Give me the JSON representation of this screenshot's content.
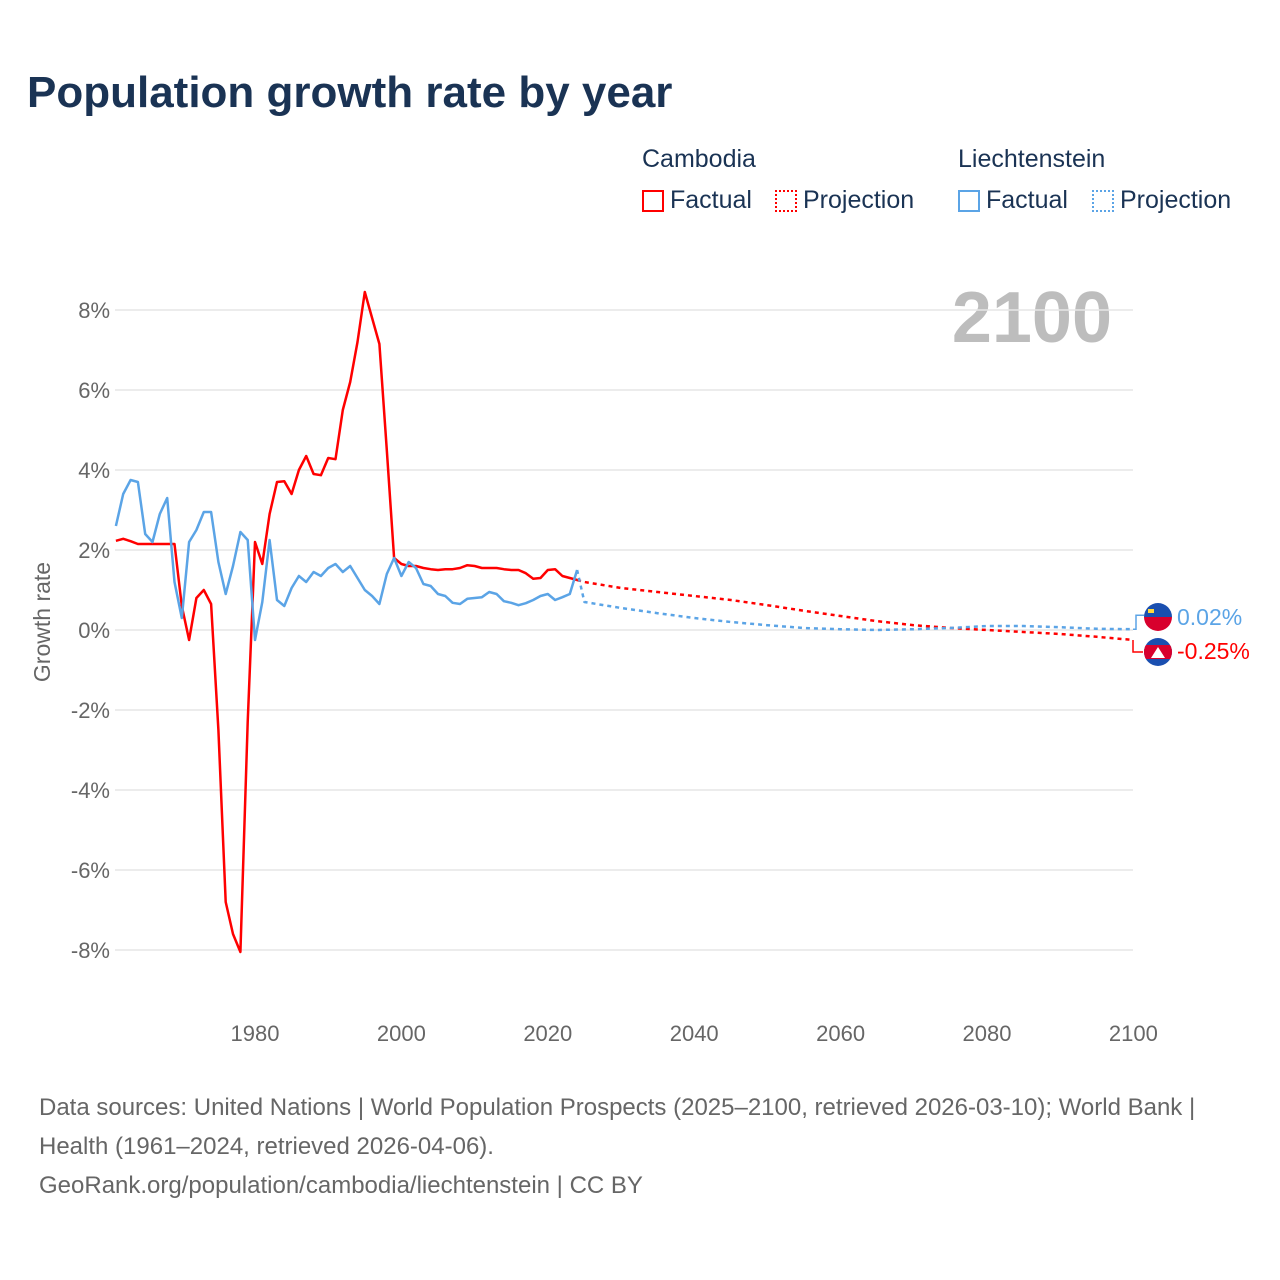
{
  "title": "Population growth rate by year",
  "legend": {
    "groups": [
      {
        "name": "Cambodia",
        "factual": "Factual",
        "projection": "Projection",
        "color": "#ff0000"
      },
      {
        "name": "Liechtenstein",
        "factual": "Factual",
        "projection": "Projection",
        "color": "#5ba4e6"
      }
    ]
  },
  "sources": {
    "line1": "Data sources: United Nations | World Population Prospects (2025–2100, retrieved 2026-03-10); World Bank | Health (1961–2024, retrieved 2026-04-06).",
    "line2": "GeoRank.org/population/cambodia/liechtenstein | CC BY"
  },
  "chart_data": {
    "type": "line",
    "title": "Population growth rate by year",
    "xlabel": "",
    "ylabel": "Growth rate",
    "year_label": "2100",
    "xlim": [
      1961,
      2100
    ],
    "ylim": [
      -9,
      9
    ],
    "xticks": [
      1980,
      2000,
      2020,
      2040,
      2060,
      2080,
      2100
    ],
    "yticks": [
      -8,
      -6,
      -4,
      -2,
      0,
      2,
      4,
      6,
      8
    ],
    "ytick_labels": [
      "-8%",
      "-6%",
      "-4%",
      "-2%",
      "0%",
      "2%",
      "4%",
      "6%",
      "8%"
    ],
    "end_labels": {
      "Cambodia": "-0.25%",
      "Liechtenstein": "0.02%"
    },
    "series": [
      {
        "name": "Cambodia",
        "kind": "factual",
        "color": "#ff0000",
        "x_start": 1961,
        "values": [
          2.23,
          2.28,
          2.22,
          2.15,
          2.15,
          2.15,
          2.15,
          2.15,
          2.15,
          0.6,
          -0.25,
          0.8,
          1.0,
          0.65,
          -2.5,
          -6.8,
          -7.6,
          -8.05,
          -2.3,
          2.2,
          1.65,
          2.9,
          3.7,
          3.72,
          3.4,
          4.0,
          4.35,
          3.9,
          3.87,
          4.3,
          4.27,
          5.5,
          6.2,
          7.2,
          8.45,
          7.8,
          7.15,
          4.5,
          1.8,
          1.65,
          1.6,
          1.6,
          1.55,
          1.52,
          1.5,
          1.52,
          1.52,
          1.55,
          1.62,
          1.6,
          1.55,
          1.55,
          1.55,
          1.52,
          1.5,
          1.5,
          1.42,
          1.28,
          1.3,
          1.5,
          1.52,
          1.35,
          1.3,
          1.25
        ]
      },
      {
        "name": "Cambodia",
        "kind": "projection",
        "color": "#ff0000",
        "x": [
          2024,
          2025,
          2030,
          2035,
          2040,
          2045,
          2050,
          2055,
          2060,
          2065,
          2070,
          2075,
          2080,
          2085,
          2090,
          2095,
          2100
        ],
        "values": [
          1.25,
          1.2,
          1.05,
          0.95,
          0.85,
          0.75,
          0.62,
          0.48,
          0.35,
          0.22,
          0.12,
          0.05,
          0.0,
          -0.05,
          -0.1,
          -0.17,
          -0.25
        ]
      },
      {
        "name": "Liechtenstein",
        "kind": "factual",
        "color": "#5ba4e6",
        "x_start": 1961,
        "values": [
          2.6,
          3.4,
          3.75,
          3.7,
          2.4,
          2.2,
          2.9,
          3.3,
          1.2,
          0.3,
          2.2,
          2.5,
          2.95,
          2.95,
          1.7,
          0.9,
          1.6,
          2.45,
          2.25,
          -0.25,
          0.7,
          2.25,
          0.75,
          0.6,
          1.05,
          1.35,
          1.2,
          1.45,
          1.35,
          1.55,
          1.65,
          1.45,
          1.6,
          1.3,
          1.0,
          0.85,
          0.65,
          1.4,
          1.8,
          1.35,
          1.7,
          1.55,
          1.15,
          1.1,
          0.9,
          0.85,
          0.68,
          0.65,
          0.78,
          0.8,
          0.82,
          0.95,
          0.9,
          0.72,
          0.68,
          0.62,
          0.67,
          0.75,
          0.85,
          0.9,
          0.75,
          0.82,
          0.9,
          1.5
        ]
      },
      {
        "name": "Liechtenstein",
        "kind": "projection",
        "color": "#5ba4e6",
        "x": [
          2024,
          2025,
          2030,
          2035,
          2040,
          2045,
          2050,
          2055,
          2060,
          2065,
          2070,
          2075,
          2080,
          2085,
          2090,
          2095,
          2100
        ],
        "values": [
          1.5,
          0.7,
          0.55,
          0.42,
          0.3,
          0.2,
          0.12,
          0.05,
          0.02,
          0.0,
          0.02,
          0.05,
          0.1,
          0.1,
          0.07,
          0.03,
          0.02
        ]
      }
    ]
  }
}
